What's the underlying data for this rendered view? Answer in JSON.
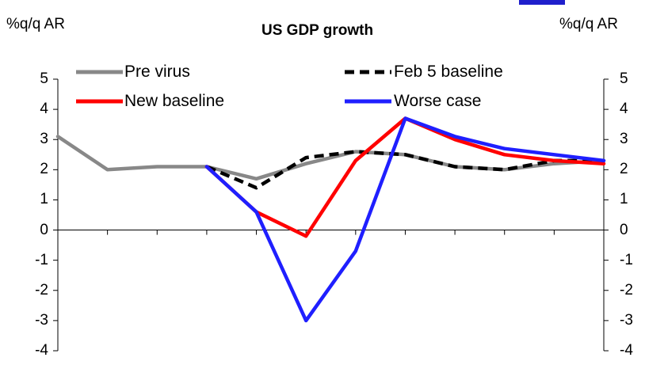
{
  "chart_data": {
    "type": "line",
    "title": "US GDP growth",
    "ylabel_left": "%q/q AR",
    "ylabel_right": "%q/q AR",
    "ylim": [
      -4,
      5
    ],
    "yticks": [
      "-4",
      "-3",
      "-2",
      "-1",
      "0",
      "1",
      "2",
      "3",
      "4",
      "5"
    ],
    "x_count": 12,
    "legend_placement": "top",
    "series": [
      {
        "name": "Pre virus",
        "color": "#888888",
        "dash": "solid",
        "values": [
          3.1,
          2.0,
          2.1,
          2.1,
          1.7,
          2.2,
          2.6,
          2.5,
          2.1,
          2.0,
          2.2,
          2.3
        ]
      },
      {
        "name": "Feb 5 baseline",
        "color": "#000000",
        "dash": "dashed",
        "values": [
          null,
          null,
          null,
          2.1,
          1.4,
          2.4,
          2.6,
          2.5,
          2.1,
          2.0,
          2.3,
          2.3
        ]
      },
      {
        "name": "New baseline",
        "color": "#ff0000",
        "dash": "solid",
        "values": [
          null,
          null,
          null,
          2.1,
          0.6,
          -0.2,
          2.3,
          3.7,
          3.0,
          2.5,
          2.3,
          2.2
        ]
      },
      {
        "name": "Worse case",
        "color": "#1f1fff",
        "dash": "solid",
        "values": [
          null,
          null,
          null,
          2.1,
          0.6,
          -3.0,
          -0.7,
          3.7,
          3.1,
          2.7,
          2.5,
          2.3
        ]
      }
    ]
  }
}
